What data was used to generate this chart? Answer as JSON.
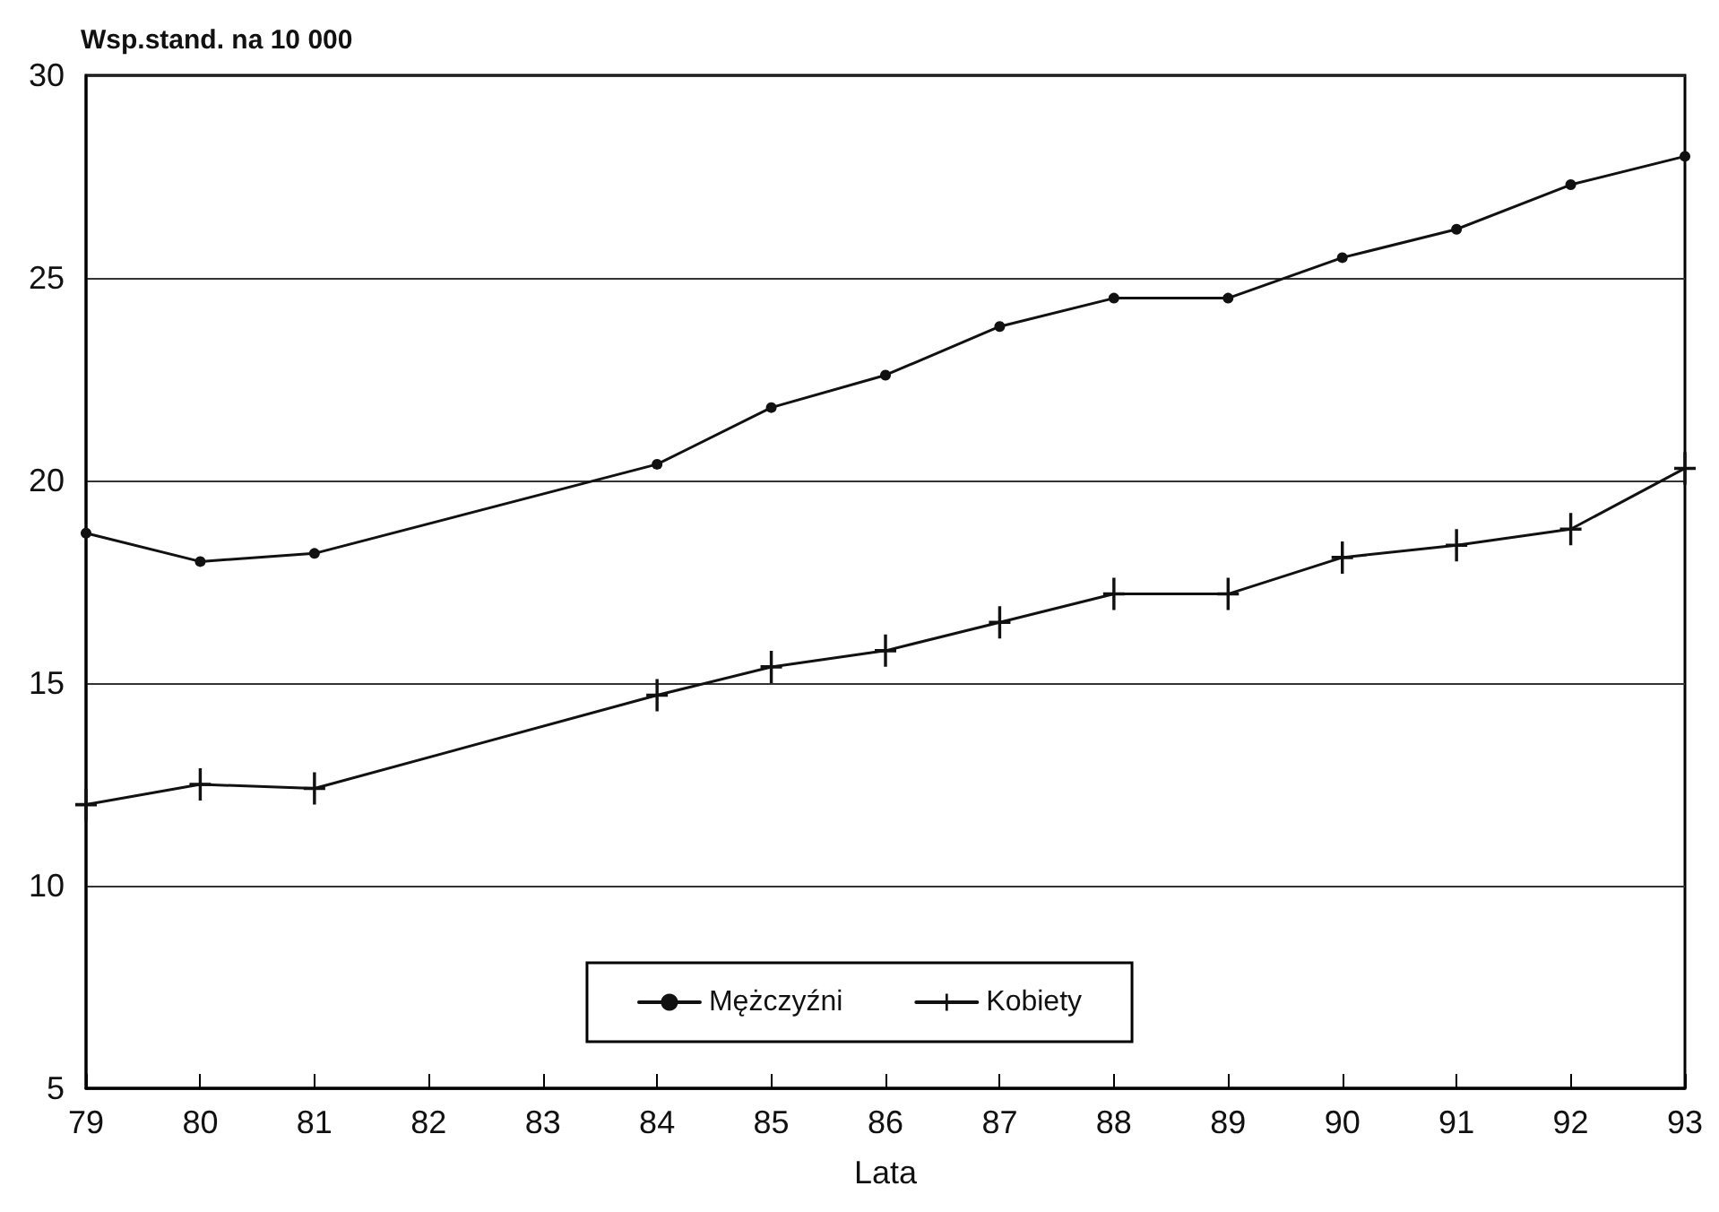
{
  "chart_data": {
    "type": "line",
    "ylabel": "Wsp.stand. na 10 000",
    "xlabel": "Lata",
    "x": [
      79,
      80,
      81,
      84,
      85,
      86,
      87,
      88,
      89,
      90,
      91,
      92,
      93
    ],
    "series": [
      {
        "name": "Mężczyźni",
        "color": "#111111",
        "marker": "circle",
        "values": [
          18.7,
          18.0,
          18.2,
          20.4,
          21.8,
          22.6,
          23.8,
          24.5,
          24.5,
          25.5,
          26.2,
          27.3,
          28.0
        ]
      },
      {
        "name": "Kobiety",
        "color": "#111111",
        "marker": "cross",
        "values": [
          12.0,
          12.5,
          12.4,
          14.7,
          15.4,
          15.8,
          16.5,
          17.2,
          17.2,
          18.1,
          18.4,
          18.8,
          20.3
        ]
      }
    ],
    "xlim": [
      79,
      93
    ],
    "xticks": [
      79,
      80,
      81,
      82,
      83,
      84,
      85,
      86,
      87,
      88,
      89,
      90,
      91,
      92,
      93
    ],
    "ylim": [
      5,
      30
    ],
    "yticks": [
      5,
      10,
      15,
      20,
      25,
      30
    ],
    "grid": "y",
    "legend": "bottom",
    "line_style": "solid"
  }
}
